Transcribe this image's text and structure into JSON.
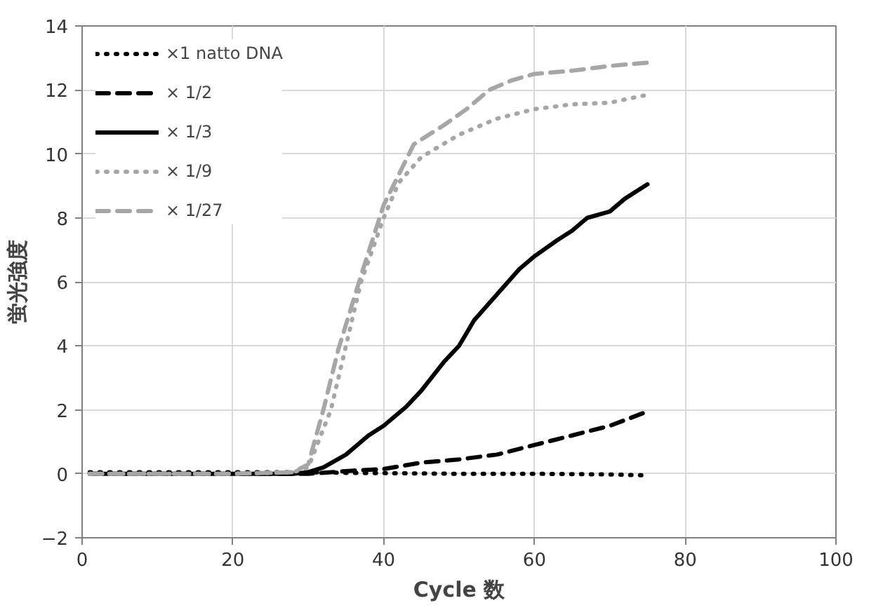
{
  "chart_data": {
    "type": "line",
    "xlabel": "Cycle 数",
    "ylabel": "蛍光強度",
    "xlim": [
      0,
      100
    ],
    "ylim": [
      -2,
      14
    ],
    "xticks": [
      0,
      20,
      40,
      60,
      80,
      100
    ],
    "yticks": [
      -2,
      0,
      2,
      4,
      6,
      8,
      10,
      12,
      14
    ],
    "grid": true,
    "legend": "top left",
    "marker": "none",
    "series": [
      {
        "name": "×1 natto DNA",
        "color": "#000000",
        "line_style": "dotted",
        "x": [
          1,
          10,
          20,
          28,
          30,
          35,
          40,
          50,
          60,
          70,
          75
        ],
        "values": [
          0.05,
          0.05,
          0.05,
          0.05,
          0.05,
          0.03,
          0.02,
          0.0,
          0.0,
          -0.02,
          -0.05
        ]
      },
      {
        "name": "× 1/2",
        "color": "#000000",
        "line_style": "dashed",
        "x": [
          1,
          10,
          20,
          30,
          33,
          36,
          40,
          45,
          50,
          55,
          60,
          65,
          70,
          75
        ],
        "values": [
          0,
          0,
          0,
          0,
          0.05,
          0.1,
          0.15,
          0.35,
          0.45,
          0.6,
          0.9,
          1.2,
          1.5,
          1.95
        ]
      },
      {
        "name": "× 1/3",
        "color": "#000000",
        "line_style": "solid",
        "x": [
          1,
          10,
          20,
          28,
          30,
          32,
          35,
          38,
          40,
          43,
          45,
          48,
          50,
          52,
          55,
          58,
          60,
          63,
          65,
          67,
          70,
          72,
          75
        ],
        "values": [
          0,
          0,
          0,
          0,
          0.05,
          0.2,
          0.6,
          1.2,
          1.5,
          2.1,
          2.6,
          3.5,
          4.0,
          4.8,
          5.6,
          6.4,
          6.8,
          7.3,
          7.6,
          8.0,
          8.2,
          8.6,
          9.05
        ]
      },
      {
        "name": "× 1/9",
        "color": "#a6a6a6",
        "line_style": "dotted",
        "x": [
          1,
          10,
          20,
          28,
          30,
          33,
          35,
          37,
          40,
          42,
          45,
          50,
          55,
          60,
          65,
          70,
          75
        ],
        "values": [
          0,
          0,
          0,
          0.05,
          0.2,
          2,
          4,
          6,
          8,
          9.1,
          9.9,
          10.6,
          11.1,
          11.4,
          11.55,
          11.6,
          11.85
        ]
      },
      {
        "name": "× 1/27",
        "color": "#a6a6a6",
        "line_style": "dashed",
        "x": [
          1,
          10,
          20,
          28,
          30,
          32,
          34,
          37,
          40,
          44,
          48,
          51,
          54,
          57,
          60,
          65,
          70,
          75
        ],
        "values": [
          0,
          0,
          0,
          0.05,
          0.3,
          2,
          3.9,
          6.2,
          8.4,
          10.3,
          10.9,
          11.4,
          12,
          12.3,
          12.5,
          12.6,
          12.75,
          12.85
        ]
      }
    ]
  }
}
